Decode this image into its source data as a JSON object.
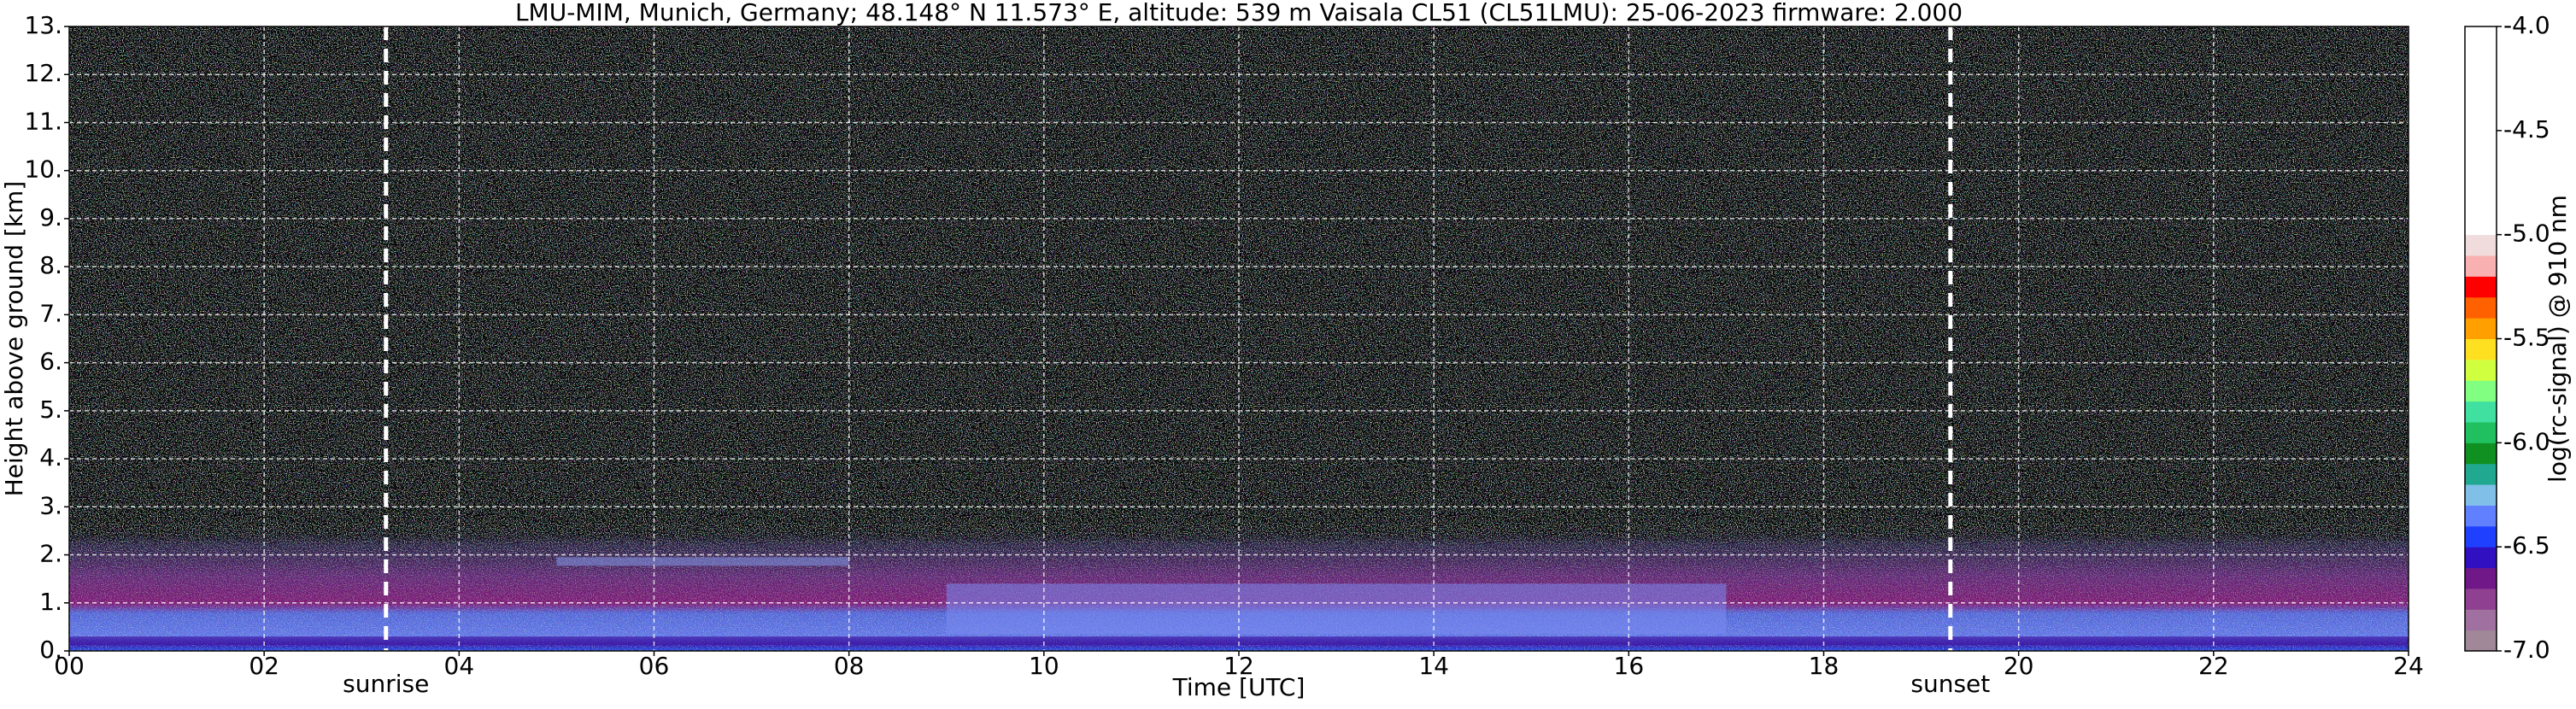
{
  "chart_data": {
    "type": "heatmap",
    "title": "LMU-MIM, Munich, Germany; 48.148° N 11.573° E, altitude: 539 m    Vaisala CL51 (CL51LMU): 25-06-2023    firmware: 2.000",
    "x_label": "Time [UTC]",
    "y_label": "Height above ground [km]",
    "xlim": [
      0,
      24
    ],
    "ylim": [
      0,
      13
    ],
    "xticks": [
      {
        "value": 0,
        "label": "00"
      },
      {
        "value": 2,
        "label": "02"
      },
      {
        "value": 4,
        "label": "04"
      },
      {
        "value": 6,
        "label": "06"
      },
      {
        "value": 8,
        "label": "08"
      },
      {
        "value": 10,
        "label": "10"
      },
      {
        "value": 12,
        "label": "12"
      },
      {
        "value": 14,
        "label": "14"
      },
      {
        "value": 16,
        "label": "16"
      },
      {
        "value": 18,
        "label": "18"
      },
      {
        "value": 20,
        "label": "20"
      },
      {
        "value": 22,
        "label": "22"
      },
      {
        "value": 24,
        "label": "24"
      }
    ],
    "yticks": [
      {
        "value": 0,
        "label": "0."
      },
      {
        "value": 1,
        "label": "1."
      },
      {
        "value": 2,
        "label": "2."
      },
      {
        "value": 3,
        "label": "3."
      },
      {
        "value": 4,
        "label": "4."
      },
      {
        "value": 5,
        "label": "5."
      },
      {
        "value": 6,
        "label": "6."
      },
      {
        "value": 7,
        "label": "7."
      },
      {
        "value": 8,
        "label": "8."
      },
      {
        "value": 9,
        "label": "9."
      },
      {
        "value": 10,
        "label": "10."
      },
      {
        "value": 11,
        "label": "11."
      },
      {
        "value": 12,
        "label": "12."
      },
      {
        "value": 13,
        "label": "13."
      }
    ],
    "grid": true,
    "annotations": [
      {
        "x": 3.25,
        "text": "sunrise"
      },
      {
        "x": 19.3,
        "text": "sunset"
      }
    ],
    "colorbar": {
      "label": "log(rc-signal) @ 910 nm",
      "lim": [
        -7,
        -4
      ],
      "ticks": [
        {
          "value": -4,
          "label": "-4.0"
        },
        -4.5,
        {
          "value": -5,
          "label": "-5.0"
        },
        -5.5,
        {
          "value": -6,
          "label": "-6.0"
        },
        -6.5,
        {
          "value": -7,
          "label": "-7.0"
        }
      ],
      "colors": [
        "#a08898",
        "#a070a0",
        "#904090",
        "#701888",
        "#3010c0",
        "#2040ff",
        "#6080ff",
        "#80c0e8",
        "#20a890",
        "#109020",
        "#20c060",
        "#40e0a0",
        "#80ff80",
        "#d0ff40",
        "#ffe020",
        "#ffa000",
        "#ff6000",
        "#ff0000",
        "#f8b0b0",
        "#f0dcdc",
        "#ffffff",
        "#ffffff",
        "#ffffff",
        "#ffffff",
        "#ffffff",
        "#ffffff",
        "#ffffff",
        "#ffffff",
        "#ffffff",
        "#ffffff"
      ]
    }
  }
}
